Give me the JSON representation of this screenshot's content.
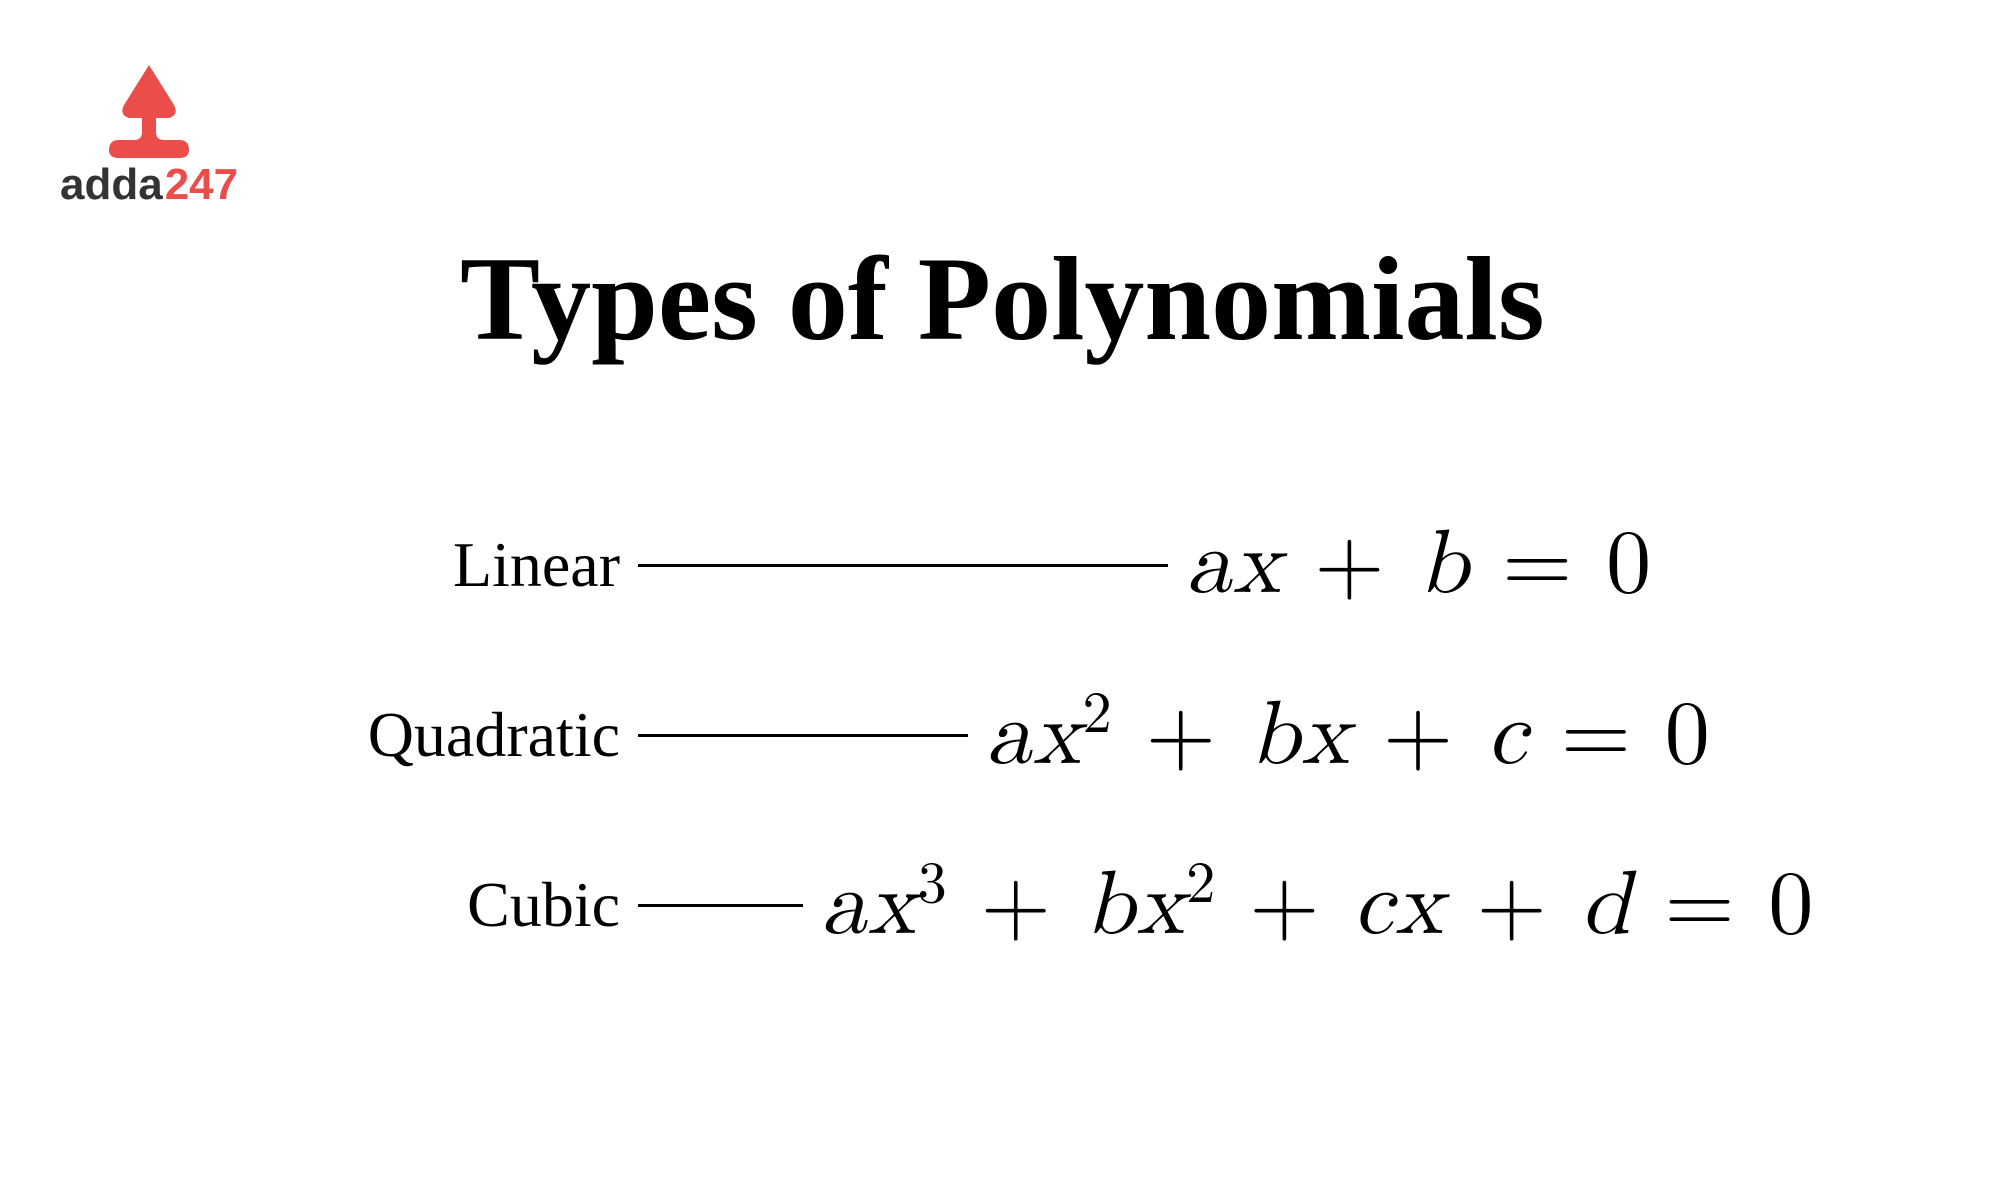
{
  "logo": {
    "text_adda": "adda",
    "text_247": "247",
    "shape_color": "#eb4d4b",
    "text_color_main": "#333333",
    "text_color_accent": "#eb4d4b"
  },
  "title": {
    "text": "Types of Polynomials",
    "fontsize": 120,
    "color": "#000000"
  },
  "rows": [
    {
      "label": "Linear",
      "formula_html": "<span class='upright'></span>ax <span class='upright'>+</span> b <span class='upright'>= 0</span>",
      "line_width": 530
    },
    {
      "label": "Quadratic",
      "formula_html": "ax<sup>2</sup> <span class='upright'>+</span> bx <span class='upright'>+</span> c <span class='upright'>= 0</span>",
      "line_width": 330
    },
    {
      "label": "Cubic",
      "formula_html": "ax<sup>3</sup> <span class='upright'>+</span> bx<sup>2</sup> <span class='upright'>+</span> cx <span class='upright'>+</span> d <span class='upright'>= 0</span>",
      "line_width": 165
    }
  ],
  "styling": {
    "background_color": "#ffffff",
    "label_fontsize": 64,
    "formula_fontsize": 90,
    "line_color": "#000000",
    "line_thickness": 3
  }
}
